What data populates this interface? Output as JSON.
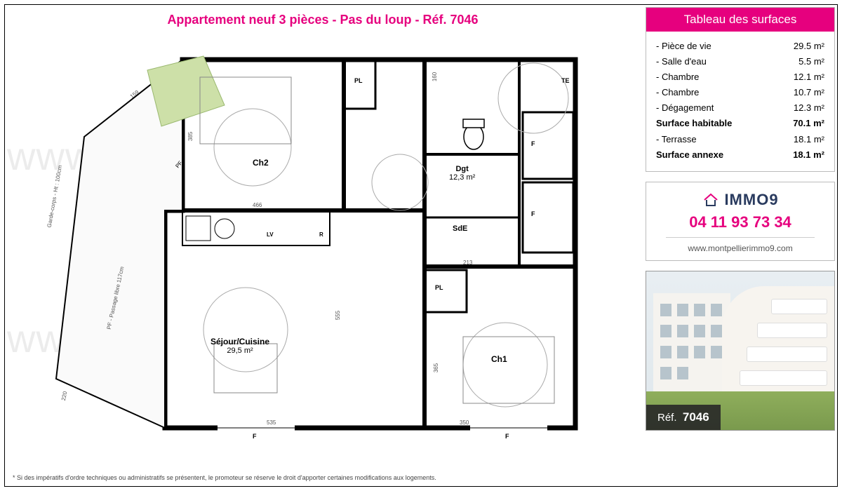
{
  "colors": {
    "accent": "#e6007e",
    "border": "#bbbbbb",
    "text_muted": "#555555"
  },
  "title": "Appartement neuf 3 pièces - Pas du loup - Réf. 7046",
  "watermark": "www.montpellierimmo9.com",
  "disclaimer": "* Si des impératifs d'ordre techniques ou administratifs se présentent, le promoteur se réserve le droit d'apporter certaines modifications aux logements.",
  "surfaces": {
    "header": "Tableau des surfaces",
    "rows": [
      {
        "label": "- Pièce de vie",
        "value": "29.5 m²",
        "bold": false
      },
      {
        "label": "- Salle d'eau",
        "value": "5.5 m²",
        "bold": false
      },
      {
        "label": "- Chambre",
        "value": "12.1 m²",
        "bold": false
      },
      {
        "label": "- Chambre",
        "value": "10.7 m²",
        "bold": false
      },
      {
        "label": "- Dégagement",
        "value": "12.3 m²",
        "bold": false
      },
      {
        "label": "Surface habitable",
        "value": "70.1 m²",
        "bold": true
      },
      {
        "label": "- Terrasse",
        "value": "18.1 m²",
        "bold": false
      },
      {
        "label": "Surface annexe",
        "value": "18.1 m²",
        "bold": true
      }
    ]
  },
  "contact": {
    "brand": "IMMO9",
    "phone": "04 11 93 73 34",
    "website": "www.montpellierimmo9.com"
  },
  "ref": {
    "prefix": "Réf.",
    "number": "7046"
  },
  "floorplan": {
    "rooms": {
      "sejour": {
        "name": "Séjour/Cuisine",
        "area": "29,5 m²"
      },
      "ch1": {
        "name": "Ch1"
      },
      "ch2": {
        "name": "Ch2"
      },
      "dgt": {
        "name": "Dgt",
        "area": "12,3 m²"
      },
      "sde": {
        "name": "SdE"
      }
    },
    "labels": {
      "pl": "PL",
      "f": "F",
      "lv": "LV",
      "r": "R",
      "te": "TE",
      "pf": "PF"
    },
    "dims": {
      "d466": "466",
      "d385": "385",
      "d535": "535",
      "d555": "555",
      "d160": "160",
      "d220": "220",
      "d159": "159",
      "d350": "350",
      "d213": "213",
      "d365": "365"
    },
    "terrace_note": "Garde-corps - Ht : 100cm",
    "passage_note": "PF - Passage libre 117cm"
  }
}
